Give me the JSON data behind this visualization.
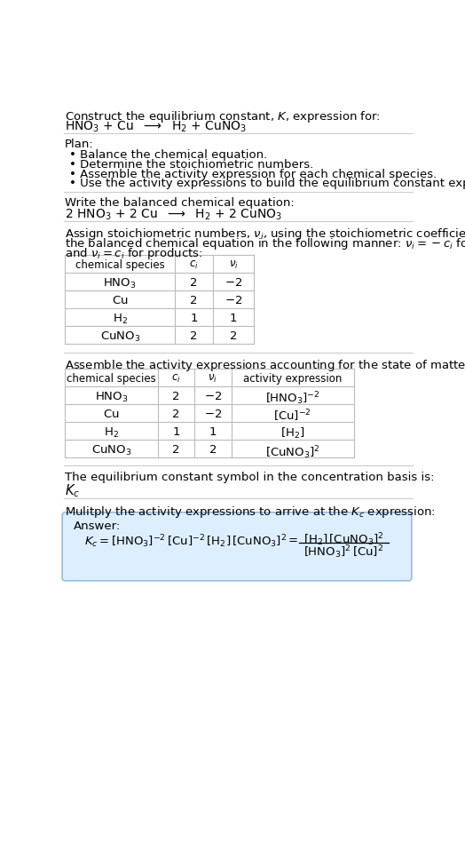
{
  "title_line1": "Construct the equilibrium constant, $K$, expression for:",
  "title_line2_parts": [
    "$\\mathrm{HNO_3}$",
    " + Cu  ",
    "$\\longrightarrow$",
    "  $\\mathrm{H_2}$",
    " + ",
    "$\\mathrm{CuNO_3}$"
  ],
  "plan_header": "Plan:",
  "plan_items": [
    "• Balance the chemical equation.",
    "• Determine the stoichiometric numbers.",
    "• Assemble the activity expression for each chemical species.",
    "• Use the activity expressions to build the equilibrium constant expression."
  ],
  "balanced_header": "Write the balanced chemical equation:",
  "balanced_eq": "2 $\\mathrm{HNO_3}$ + 2 Cu  $\\longrightarrow$  $\\mathrm{H_2}$ + 2 $\\mathrm{CuNO_3}$",
  "stoich_line1": "Assign stoichiometric numbers, $\\nu_i$, using the stoichiometric coefficients, $c_i$, from",
  "stoich_line2": "the balanced chemical equation in the following manner: $\\nu_i = -c_i$ for reactants",
  "stoich_line3": "and $\\nu_i = c_i$ for products:",
  "table1_headers": [
    "chemical species",
    "$c_i$",
    "$\\nu_i$"
  ],
  "table1_rows": [
    [
      "$\\mathrm{HNO_3}$",
      "2",
      "$-2$"
    ],
    [
      "$\\mathrm{Cu}$",
      "2",
      "$-2$"
    ],
    [
      "$\\mathrm{H_2}$",
      "1",
      "1"
    ],
    [
      "$\\mathrm{CuNO_3}$",
      "2",
      "2"
    ]
  ],
  "assemble_text": "Assemble the activity expressions accounting for the state of matter and $\\nu_i$:",
  "table2_headers": [
    "chemical species",
    "$c_i$",
    "$\\nu_i$",
    "activity expression"
  ],
  "table2_rows": [
    [
      "$\\mathrm{HNO_3}$",
      "2",
      "$-2$",
      "$\\mathrm{[HNO_3]^{-2}}$"
    ],
    [
      "$\\mathrm{Cu}$",
      "2",
      "$-2$",
      "$\\mathrm{[Cu]^{-2}}$"
    ],
    [
      "$\\mathrm{H_2}$",
      "1",
      "1",
      "$\\mathrm{[H_2]}$"
    ],
    [
      "$\\mathrm{CuNO_3}$",
      "2",
      "2",
      "$\\mathrm{[CuNO_3]^2}$"
    ]
  ],
  "kc_text": "The equilibrium constant symbol in the concentration basis is:",
  "kc_symbol": "$K_c$",
  "multiply_text": "Mulitply the activity expressions to arrive at the $K_c$ expression:",
  "answer_label": "Answer:",
  "bg_color": "#ffffff",
  "text_color": "#000000",
  "table_line_color": "#bbbbbb",
  "answer_box_bg": "#ddeeff",
  "answer_box_edge": "#99bbdd",
  "font_size": 9.5
}
